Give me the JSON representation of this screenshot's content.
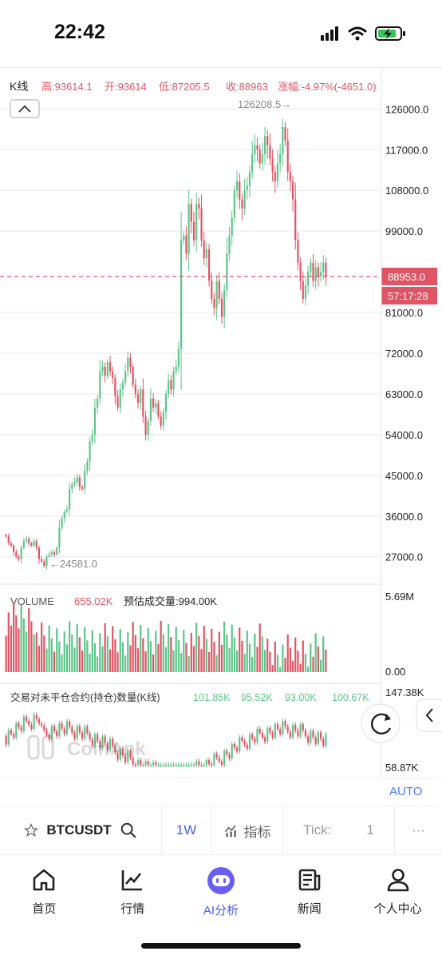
{
  "status_bar": {
    "time": "22:42"
  },
  "ohlc": {
    "label": "K线",
    "high": "高:93614.1",
    "open": "开:93614",
    "low": "低:87205.5",
    "close": "收:88963",
    "change": "涨幅:-4.97%(-4651.0)"
  },
  "price_axis": {
    "ticks": [
      126000,
      117000,
      108000,
      99000,
      81000,
      72000,
      63000,
      54000,
      45000,
      36000,
      27000
    ],
    "tick_labels": [
      "126000.0",
      "117000.0",
      "108000.0",
      "99000.0",
      "81000.0",
      "72000.0",
      "63000.0",
      "54000.0",
      "45000.0",
      "36000.0",
      "27000.0"
    ],
    "current_price": "88953.0",
    "countdown": "57:17:28",
    "max_label": "126208.5→",
    "min_label": "←24581.0"
  },
  "volume": {
    "title": "VOLUME",
    "value": "655.02K",
    "estimate": "预估成交量:994.00K",
    "max_label": "5.69M",
    "min_label": "0.00"
  },
  "oi": {
    "title": "交易对未平仓合约(持仓)数量(K线)",
    "values": [
      "101.85K",
      "95.52K",
      "93.00K",
      "100.67K"
    ],
    "max_label": "147.38K",
    "min_label": "58.87K",
    "auto": "AUTO",
    "watermark": "CoinAnk"
  },
  "toolbar": {
    "symbol": "BTCUSDT",
    "interval": "1W",
    "indicator": "指标",
    "tick_label": "Tick:",
    "tick_value": "1",
    "more": "···"
  },
  "tabs": [
    {
      "label": "首页",
      "icon": "home-icon"
    },
    {
      "label": "行情",
      "icon": "market-chart-icon"
    },
    {
      "label": "AI分析",
      "icon": "ai-robot-icon"
    },
    {
      "label": "新闻",
      "icon": "news-icon"
    },
    {
      "label": "个人中心",
      "icon": "profile-icon"
    }
  ],
  "colors": {
    "up": "#5cc58a",
    "down": "#e05565",
    "accent": "#4a5cf0",
    "axis_text": "#222222",
    "grid": "#e8e8e8"
  },
  "chart_data": {
    "type": "candlestick",
    "price_range": [
      22000,
      128000
    ],
    "closes": [
      31500,
      30000,
      29500,
      28000,
      27000,
      26500,
      29000,
      30500,
      31000,
      30000,
      29500,
      30500,
      29000,
      26500,
      26000,
      25000,
      27000,
      27500,
      28000,
      27500,
      29000,
      33500,
      35500,
      37000,
      37500,
      42000,
      43000,
      43500,
      44500,
      42500,
      42000,
      46000,
      48000,
      52500,
      54000,
      60000,
      62000,
      68000,
      69000,
      67000,
      70000,
      68000,
      66500,
      62500,
      60000,
      64000,
      65500,
      68000,
      71000,
      69000,
      65000,
      63000,
      61000,
      64000,
      58000,
      54000,
      57000,
      62000,
      60000,
      61000,
      58000,
      56000,
      59000,
      63000,
      66000,
      64000,
      68000,
      69000,
      73000,
      97000,
      98000,
      94000,
      105000,
      101000,
      97000,
      105000,
      104000,
      97000,
      93000,
      95000,
      88000,
      84000,
      82000,
      88000,
      84000,
      80000,
      86000,
      94000,
      98000,
      102000,
      108000,
      110000,
      106000,
      104000,
      108000,
      109000,
      112000,
      116000,
      118000,
      117000,
      114000,
      116000,
      120000,
      118000,
      115000,
      112000,
      110000,
      114000,
      116000,
      122000,
      119000,
      112000,
      110000,
      106000,
      97000,
      92000,
      88000,
      84000,
      87000,
      90000,
      92000,
      88000,
      91000,
      89000,
      90000,
      92000,
      88963
    ],
    "volume_max": 5690000,
    "oi_range": [
      58870,
      147380
    ]
  }
}
